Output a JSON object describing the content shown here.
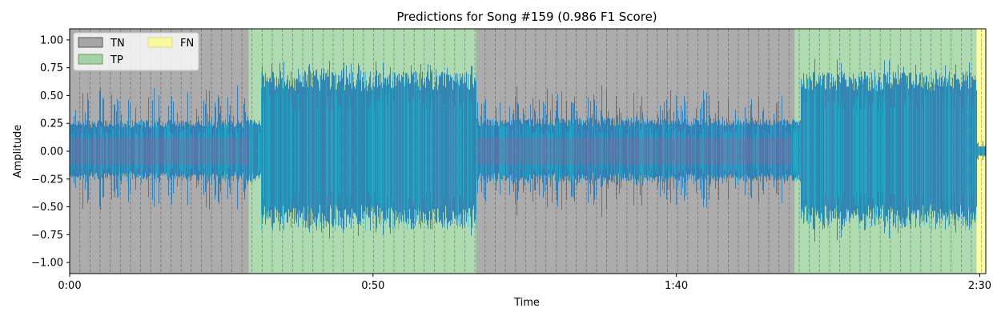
{
  "chart_data": {
    "type": "area",
    "title": "Predictions for Song #159 (0.986 F1 Score)",
    "xlabel": "Time",
    "ylabel": "Amplitude",
    "xlim": [
      0,
      151
    ],
    "ylim": [
      -1.1,
      1.1
    ],
    "x_ticks": [
      {
        "value": 0,
        "label": "0:00"
      },
      {
        "value": 50,
        "label": "0:50"
      },
      {
        "value": 100,
        "label": "1:40"
      },
      {
        "value": 150,
        "label": "2:30"
      }
    ],
    "y_ticks": [
      {
        "value": 1.0,
        "label": "1.00"
      },
      {
        "value": 0.75,
        "label": "0.75"
      },
      {
        "value": 0.5,
        "label": "0.50"
      },
      {
        "value": 0.25,
        "label": "0.25"
      },
      {
        "value": 0.0,
        "label": "0.00"
      },
      {
        "value": -0.25,
        "label": "−0.25"
      },
      {
        "value": -0.5,
        "label": "−0.50"
      },
      {
        "value": -0.75,
        "label": "−0.75"
      },
      {
        "value": -1.0,
        "label": "−1.00"
      }
    ],
    "legend": {
      "placement": "top-left",
      "entries": [
        {
          "label": "TN",
          "color": "#808080"
        },
        {
          "label": "TP",
          "color": "#4caf50"
        },
        {
          "label": "FN",
          "color": "#ffff66"
        }
      ]
    },
    "regions": [
      {
        "class": "TN",
        "start": 0,
        "end": 29.5
      },
      {
        "class": "TP",
        "start": 29.5,
        "end": 67
      },
      {
        "class": "TN",
        "start": 67,
        "end": 119.5
      },
      {
        "class": "TP",
        "start": 119.5,
        "end": 149.5
      },
      {
        "class": "FN",
        "start": 149.5,
        "end": 151
      }
    ],
    "segment_boundaries_step": 1.67,
    "waveform": {
      "color_primary": "#1f77b4",
      "color_secondary": "#17becf",
      "envelope": [
        {
          "start": 0,
          "end": 29.5,
          "peak": 0.62,
          "body": 0.28
        },
        {
          "start": 29.5,
          "end": 31.5,
          "peak": 0.32,
          "body": 0.3
        },
        {
          "start": 31.5,
          "end": 67,
          "peak": 0.85,
          "body": 0.72
        },
        {
          "start": 67,
          "end": 119,
          "peak": 0.62,
          "body": 0.3
        },
        {
          "start": 119,
          "end": 120.5,
          "peak": 0.35,
          "body": 0.3
        },
        {
          "start": 120.5,
          "end": 149.5,
          "peak": 0.85,
          "body": 0.72
        },
        {
          "start": 149.5,
          "end": 151,
          "peak": 0.1,
          "body": 0.05
        }
      ]
    }
  }
}
